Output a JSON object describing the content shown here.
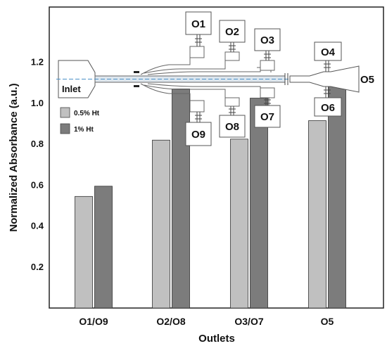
{
  "chart_data": {
    "type": "bar",
    "xlabel": "Outlets",
    "ylabel": "Normalized Absorbance (a.u.)",
    "categories": [
      "O1/O9",
      "O2/O8",
      "O3/O7",
      "O5"
    ],
    "yticks": [
      "0.2",
      "0.4",
      "0.6",
      "0.8",
      "1.0",
      "1.2"
    ],
    "ylim": [
      0,
      1.47
    ],
    "series": [
      {
        "name": "0.5% Ht",
        "color": "#c0c0c0",
        "values": [
          0.545,
          0.82,
          0.825,
          0.915
        ]
      },
      {
        "name": "1% Ht",
        "color": "#7c7c7c",
        "values": [
          0.595,
          1.07,
          1.025,
          1.125
        ]
      }
    ],
    "legend_position": "upper-left",
    "grid": false
  },
  "diagram": {
    "inlet_label": "Inlet",
    "outlets_top": [
      "O1",
      "O2",
      "O3"
    ],
    "outlets_bottom": [
      "O9",
      "O8",
      "O7"
    ],
    "outlets_right_top": "O4",
    "outlets_right_bottom": "O6",
    "outlet_end": "O5"
  }
}
